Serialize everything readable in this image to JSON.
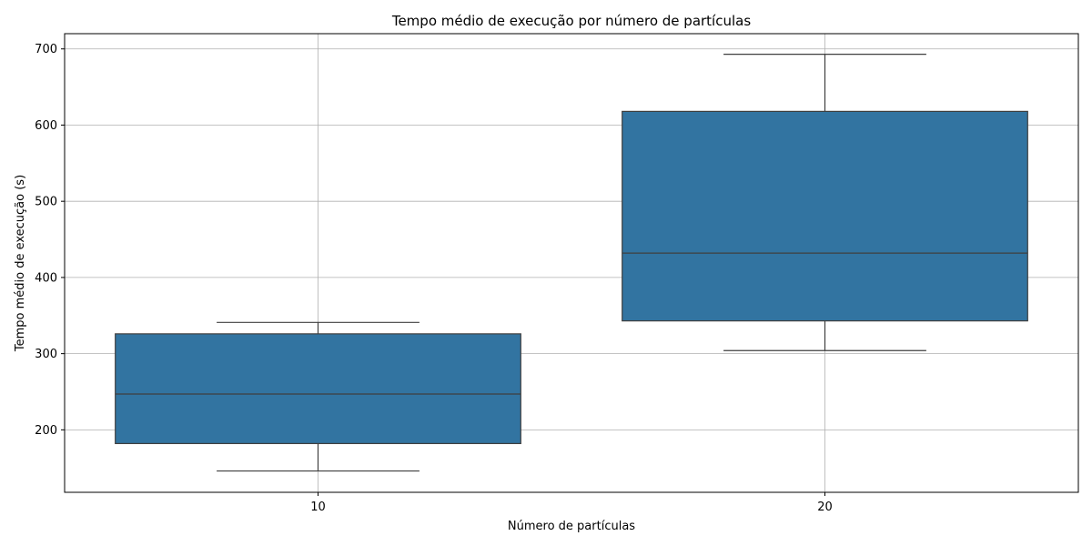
{
  "chart_data": {
    "type": "box",
    "title": "Tempo médio de execução por número de partículas",
    "xlabel": "Número de partículas",
    "ylabel": "Tempo médio de execução (s)",
    "categories": [
      "10",
      "20"
    ],
    "boxes": [
      {
        "category": "10",
        "whisker_low": 146,
        "q1": 182,
        "median": 247,
        "q3": 326,
        "whisker_high": 341
      },
      {
        "category": "20",
        "whisker_low": 304,
        "q1": 343,
        "median": 432,
        "q3": 618,
        "whisker_high": 693
      }
    ],
    "ylim": [
      118,
      720
    ],
    "yticks": [
      200,
      300,
      400,
      500,
      600,
      700
    ],
    "grid": true,
    "colors": {
      "box": "#3274a1",
      "line": "#3f3f3f",
      "grid": "#b0b0b0"
    }
  }
}
